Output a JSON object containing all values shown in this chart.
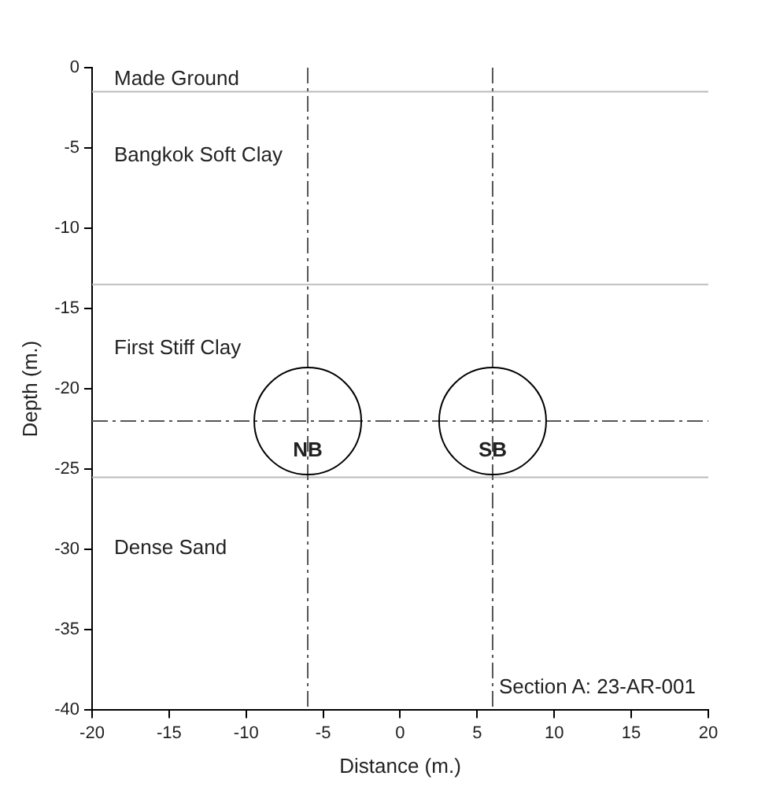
{
  "chart_data": {
    "type": "scatter",
    "xlabel": "Distance (m.)",
    "ylabel": "Depth (m.)",
    "xlim": [
      -20,
      20
    ],
    "xticks": [
      -20,
      -15,
      -10,
      -5,
      0,
      5,
      10,
      15,
      20
    ],
    "ylim": [
      -40,
      0
    ],
    "yticks": [
      -40,
      -35,
      -30,
      -25,
      -20,
      -15,
      -10,
      -5,
      0
    ],
    "grid": false,
    "legend": false,
    "marker": "circle",
    "series": [
      {
        "color": "#000000",
        "x": [
          -6,
          6
        ],
        "values": [
          -22,
          -22
        ]
      }
    ],
    "ref_lines": [
      {
        "axis": "y",
        "value": -1.5,
        "line_style": "solid",
        "color": "#bbbbbb"
      },
      {
        "axis": "y",
        "value": -13.5,
        "line_style": "solid",
        "color": "#bbbbbb"
      },
      {
        "axis": "y",
        "value": -25.5,
        "line_style": "solid",
        "color": "#bbbbbb"
      },
      {
        "axis": "x",
        "value": -6,
        "line_style": "dashed",
        "color": "#555555"
      },
      {
        "axis": "x",
        "value": 6,
        "line_style": "dashed",
        "color": "#555555"
      },
      {
        "axis": "y",
        "value": -22,
        "line_style": "dashed",
        "color": "#555555"
      }
    ],
    "annotations": [
      "Made Ground",
      "Bangkok Soft Clay",
      "First Stiff Clay",
      "Dense Sand",
      {
        "text": "NB",
        "x": -6,
        "y": -22
      },
      {
        "text": "SB",
        "x": 6,
        "y": -22
      },
      "Section A: 23-AR-001"
    ]
  }
}
